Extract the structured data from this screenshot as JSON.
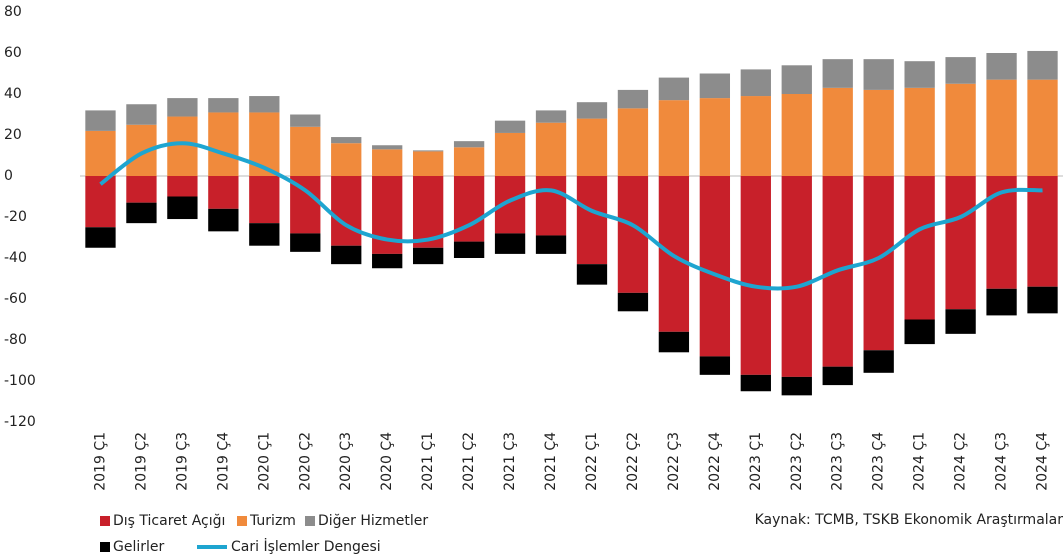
{
  "chart_data": {
    "type": "bar",
    "stacked": true,
    "categories": [
      "2019 Ç1",
      "2019 Ç2",
      "2019 Ç3",
      "2019 Ç4",
      "2020 Ç1",
      "2020 Ç2",
      "2020 Ç3",
      "2020 Ç4",
      "2021 Ç1",
      "2021 Ç2",
      "2021 Ç3",
      "2021 Ç4",
      "2022 Ç1",
      "2022 Ç2",
      "2022 Ç3",
      "2022 Ç4",
      "2023 Ç1",
      "2023 Ç2",
      "2023 Ç3",
      "2023 Ç4",
      "2024 Ç1",
      "2024 Ç2",
      "2024 Ç3",
      "2024 Ç4"
    ],
    "series": [
      {
        "name": "Dış Ticaret Açığı",
        "color": "#c8202a",
        "values": [
          -25,
          -13,
          -10,
          -16,
          -23,
          -28,
          -34,
          -38,
          -35,
          -32,
          -28,
          -29,
          -43,
          -57,
          -76,
          -88,
          -97,
          -98,
          -93,
          -85,
          -70,
          -65,
          -55,
          -54
        ]
      },
      {
        "name": "Turizm",
        "color": "#f08a3c",
        "values": [
          22,
          25,
          29,
          31,
          31,
          24,
          16,
          13,
          12,
          14,
          21,
          26,
          28,
          33,
          37,
          38,
          39,
          40,
          43,
          42,
          43,
          45,
          47,
          47
        ]
      },
      {
        "name": "Diğer Hizmetler",
        "color": "#8c8c8c",
        "values": [
          10,
          10,
          9,
          7,
          8,
          6,
          3,
          2,
          0.5,
          3,
          6,
          6,
          8,
          9,
          11,
          12,
          13,
          14,
          14,
          15,
          13,
          13,
          13,
          14
        ]
      },
      {
        "name": "Gelirler",
        "color": "#000000",
        "values": [
          -10,
          -10,
          -11,
          -11,
          -11,
          -9,
          -9,
          -7,
          -8,
          -8,
          -10,
          -9,
          -10,
          -9,
          -10,
          -9,
          -8,
          -9,
          -9,
          -11,
          -12,
          -12,
          -13,
          -13
        ]
      },
      {
        "name": "Cari İşlemler Dengesi",
        "type": "line",
        "color": "#1ea5d0",
        "values": [
          -4,
          11,
          16,
          11,
          4,
          -7,
          -24,
          -31,
          -31,
          -24,
          -12,
          -7,
          -17,
          -24,
          -39,
          -48,
          -54,
          -54,
          -46,
          -40,
          -26,
          -20,
          -8,
          -7
        ]
      }
    ],
    "ylim": [
      -120,
      80
    ],
    "yticks": [
      -120,
      -100,
      -80,
      -60,
      -40,
      -20,
      0,
      20,
      40,
      60,
      80
    ],
    "grid": false,
    "source": "Kaynak: TCMB, TSKB Ekonomik Araştırmalar"
  }
}
